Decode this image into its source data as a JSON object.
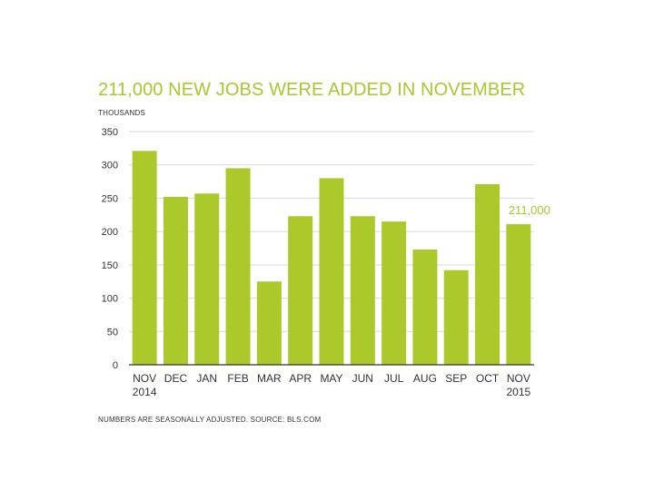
{
  "header": {
    "title": "211,000 NEW JOBS WERE ADDED IN NOVEMBER",
    "unit": "THOUSANDS"
  },
  "footer": {
    "note": "NUMBERS ARE SEASONALLY ADJUSTED. SOURCE: BLS.COM"
  },
  "colors": {
    "bar": "#acc92c",
    "accent_text": "#a9c72f",
    "grid": "#d9d9d9",
    "axis": "#333333",
    "text": "#333333"
  },
  "chart_data": {
    "type": "bar",
    "title": "211,000 NEW JOBS WERE ADDED IN NOVEMBER",
    "ylabel": "THOUSANDS",
    "xlabel": "",
    "categories": [
      "NOV",
      "DEC",
      "JAN",
      "FEB",
      "MAR",
      "APR",
      "MAY",
      "JUN",
      "JUL",
      "AUG",
      "SEP",
      "OCT",
      "NOV"
    ],
    "category_sublabels": [
      "2014",
      "",
      "",
      "",
      "",
      "",
      "",
      "",
      "",
      "",
      "",
      "",
      "2015"
    ],
    "values": [
      321,
      252,
      257,
      295,
      125,
      223,
      280,
      223,
      215,
      173,
      142,
      271,
      211
    ],
    "ylim": [
      0,
      350
    ],
    "yticks": [
      0,
      50,
      100,
      150,
      200,
      250,
      300,
      350
    ],
    "grid": true,
    "annotations": [
      {
        "index": 12,
        "text": "211,000"
      }
    ]
  }
}
